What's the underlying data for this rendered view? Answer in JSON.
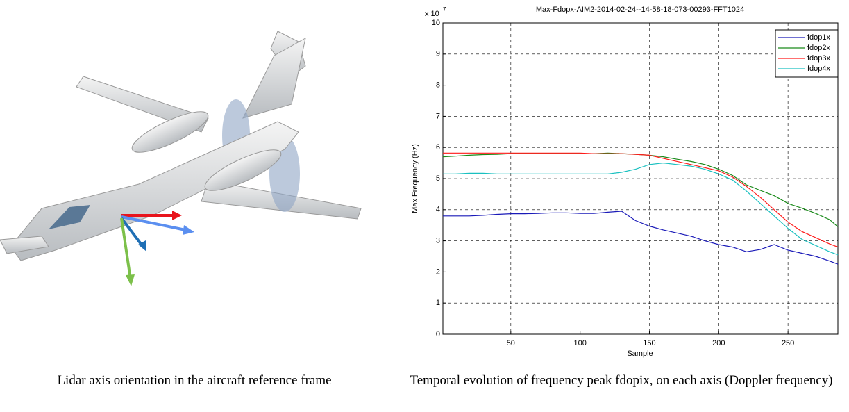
{
  "captions": [
    "Lidar axis orientation in the aircraft reference frame",
    "Temporal evolution of frequency peak fdopix, on each axis (Doppler frequency)"
  ],
  "chart_data": {
    "type": "line",
    "title": "Max-Fdopx-AIM2-2014-02-24--14-58-18-073-00293-FFT1024",
    "x_label": "Sample",
    "y_label": "Max Frequency (Hz)",
    "y_multiplier": "x 10",
    "y_multiplier_exponent": "7",
    "x": [
      1,
      10,
      20,
      30,
      40,
      50,
      60,
      70,
      80,
      90,
      100,
      110,
      120,
      130,
      140,
      150,
      160,
      170,
      180,
      190,
      200,
      210,
      220,
      230,
      240,
      250,
      260,
      270,
      280,
      286
    ],
    "series": [
      {
        "name": "fdop1x",
        "color": "#1a1ab8",
        "values": [
          3.8,
          3.8,
          3.8,
          3.82,
          3.85,
          3.87,
          3.87,
          3.88,
          3.9,
          3.9,
          3.88,
          3.88,
          3.92,
          3.95,
          3.65,
          3.47,
          3.35,
          3.25,
          3.15,
          3.0,
          2.88,
          2.8,
          2.65,
          2.72,
          2.88,
          2.7,
          2.6,
          2.5,
          2.35,
          2.25
        ]
      },
      {
        "name": "fdop2x",
        "color": "#1a8a1a",
        "values": [
          5.7,
          5.72,
          5.75,
          5.77,
          5.78,
          5.8,
          5.8,
          5.8,
          5.8,
          5.8,
          5.8,
          5.8,
          5.82,
          5.8,
          5.78,
          5.75,
          5.7,
          5.62,
          5.55,
          5.45,
          5.3,
          5.1,
          4.8,
          4.62,
          4.45,
          4.2,
          4.05,
          3.88,
          3.68,
          3.45
        ]
      },
      {
        "name": "fdop3x",
        "color": "#ff1a1a",
        "values": [
          5.82,
          5.82,
          5.82,
          5.82,
          5.82,
          5.82,
          5.82,
          5.82,
          5.82,
          5.82,
          5.82,
          5.8,
          5.8,
          5.8,
          5.78,
          5.75,
          5.65,
          5.55,
          5.45,
          5.35,
          5.25,
          5.05,
          4.75,
          4.4,
          4.0,
          3.6,
          3.3,
          3.1,
          2.9,
          2.8
        ]
      },
      {
        "name": "fdop4x",
        "color": "#1ac0c0",
        "values": [
          5.15,
          5.15,
          5.17,
          5.17,
          5.15,
          5.15,
          5.15,
          5.15,
          5.15,
          5.15,
          5.15,
          5.15,
          5.15,
          5.2,
          5.3,
          5.45,
          5.5,
          5.45,
          5.4,
          5.3,
          5.15,
          4.95,
          4.6,
          4.2,
          3.8,
          3.4,
          3.05,
          2.85,
          2.65,
          2.55
        ]
      }
    ],
    "xlim": [
      1,
      286
    ],
    "ylim": [
      0,
      10
    ],
    "xticks": [
      50,
      100,
      150,
      200,
      250
    ],
    "yticks": [
      0,
      1,
      2,
      3,
      4,
      5,
      6,
      7,
      8,
      9,
      10
    ],
    "grid": true,
    "legend": "upper-right"
  }
}
